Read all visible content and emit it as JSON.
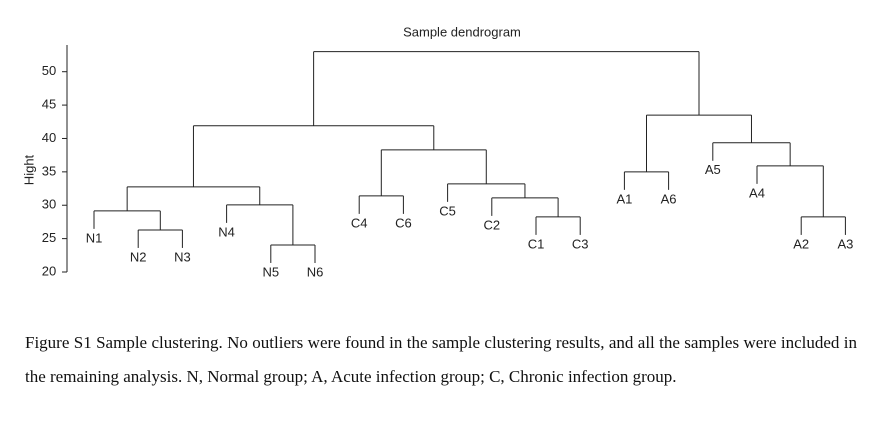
{
  "chart_data": {
    "type": "dendrogram",
    "title": "Sample dendrogram",
    "y_label": "Hight",
    "ylim": [
      20,
      54
    ],
    "yticks": [
      20,
      25,
      30,
      35,
      40,
      45,
      50
    ],
    "tree": {
      "height": 53,
      "children": [
        {
          "height": 41.9,
          "children": [
            {
              "height": 32.75,
              "children": [
                {
                  "height": 29.15,
                  "children": [
                    {
                      "label": "N1"
                    },
                    {
                      "height": 26.3,
                      "children": [
                        {
                          "label": "N2"
                        },
                        {
                          "label": "N3"
                        }
                      ]
                    }
                  ]
                },
                {
                  "height": 30.05,
                  "children": [
                    {
                      "label": "N4"
                    },
                    {
                      "height": 24.05,
                      "children": [
                        {
                          "label": "N5"
                        },
                        {
                          "label": "N6"
                        }
                      ]
                    }
                  ]
                }
              ]
            },
            {
              "height": 38.3,
              "children": [
                {
                  "height": 31.4,
                  "children": [
                    {
                      "label": "C4"
                    },
                    {
                      "label": "C6"
                    }
                  ]
                },
                {
                  "height": 33.2,
                  "children": [
                    {
                      "label": "C5"
                    },
                    {
                      "height": 31.1,
                      "children": [
                        {
                          "label": "C2"
                        },
                        {
                          "height": 28.25,
                          "children": [
                            {
                              "label": "C1"
                            },
                            {
                              "label": "C3"
                            }
                          ]
                        }
                      ]
                    }
                  ]
                }
              ]
            }
          ]
        },
        {
          "height": 43.5,
          "children": [
            {
              "height": 35.0,
              "children": [
                {
                  "label": "A1"
                },
                {
                  "label": "A6"
                }
              ]
            },
            {
              "height": 39.35,
              "children": [
                {
                  "label": "A5"
                },
                {
                  "height": 35.9,
                  "children": [
                    {
                      "label": "A4"
                    },
                    {
                      "height": 28.25,
                      "children": [
                        {
                          "label": "A2"
                        },
                        {
                          "label": "A3"
                        }
                      ]
                    }
                  ]
                }
              ]
            }
          ]
        }
      ]
    }
  },
  "caption": "Figure S1 Sample clustering. No outliers were found in the sample clustering results, and all the samples were included in the remaining analysis. N, Normal group; A, Acute infection group; C, Chronic infection group."
}
